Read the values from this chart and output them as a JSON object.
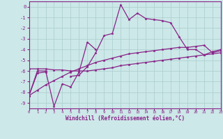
{
  "xlabel": "Windchill (Refroidissement éolien,°C)",
  "background_color": "#cce8e8",
  "grid_color": "#aacccc",
  "line_color": "#882288",
  "x_hours": [
    0,
    1,
    2,
    3,
    4,
    5,
    6,
    7,
    8,
    9,
    10,
    11,
    12,
    13,
    14,
    15,
    16,
    17,
    18,
    19,
    20,
    21,
    22,
    23
  ],
  "line1_y": [
    -8.3,
    -6.0,
    -6.0,
    -9.3,
    -7.2,
    -7.5,
    -6.1,
    -3.3,
    -4.0,
    null,
    null,
    null,
    null,
    null,
    null,
    null,
    null,
    null,
    null,
    null,
    null,
    null,
    null,
    null
  ],
  "line2_y": [
    -8.3,
    -6.2,
    -6.1,
    null,
    null,
    -6.5,
    -6.4,
    -5.6,
    -4.3,
    -2.7,
    -2.5,
    0.2,
    -1.2,
    -0.6,
    -1.1,
    -1.2,
    -1.3,
    -1.5,
    -2.8,
    -4.0,
    -4.0,
    -4.5,
    -4.2,
    -4.0
  ],
  "line3_y": [
    -5.8,
    -5.8,
    -5.8,
    -5.9,
    -5.9,
    -6.0,
    -6.0,
    -6.0,
    -5.9,
    -5.8,
    -5.7,
    -5.5,
    -5.4,
    -5.3,
    -5.2,
    -5.1,
    -5.0,
    -4.9,
    -4.8,
    -4.7,
    -4.6,
    -4.5,
    -4.4,
    -4.3
  ],
  "line4_y": [
    -8.3,
    -7.8,
    -7.3,
    -6.9,
    -6.5,
    -6.1,
    -5.8,
    -5.5,
    -5.2,
    -5.0,
    -4.8,
    -4.6,
    -4.4,
    -4.3,
    -4.2,
    -4.1,
    -4.0,
    -3.9,
    -3.8,
    -3.8,
    -3.7,
    -3.6,
    -4.3,
    -4.1
  ],
  "ylim": [
    -9.5,
    0.5
  ],
  "xlim": [
    0,
    23
  ],
  "yticks": [
    0,
    -1,
    -2,
    -3,
    -4,
    -5,
    -6,
    -7,
    -8,
    -9
  ],
  "xticks": [
    0,
    1,
    2,
    3,
    4,
    5,
    6,
    7,
    8,
    9,
    10,
    11,
    12,
    13,
    14,
    15,
    16,
    17,
    18,
    19,
    20,
    21,
    22,
    23
  ],
  "xtick_labels": [
    "0",
    "1",
    "2",
    "3",
    "4",
    "5",
    "6",
    "7",
    "8",
    "9",
    "10",
    "11",
    "12",
    "13",
    "14",
    "15",
    "16",
    "17",
    "18",
    "19",
    "20",
    "21",
    "22",
    "23"
  ]
}
